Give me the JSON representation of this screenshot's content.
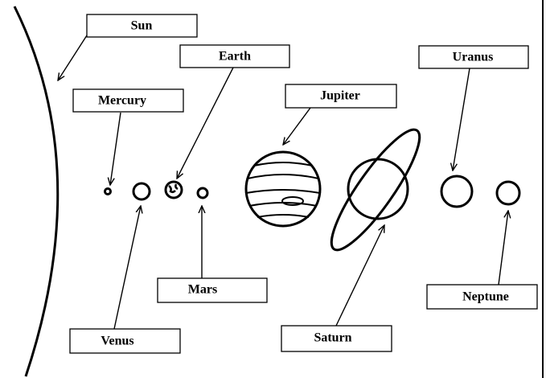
{
  "title_labels": {
    "sun": "Sun",
    "mercury": "Mercury",
    "venus": "Venus",
    "earth": "Earth",
    "mars": "Mars",
    "jupiter": "Jupiter",
    "saturn": "Saturn",
    "uranus": "Uranus",
    "neptune": "Neptune"
  }
}
